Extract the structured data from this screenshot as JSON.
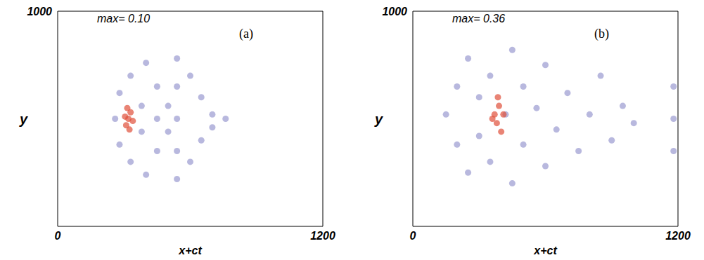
{
  "chart_data": [
    {
      "type": "scatter",
      "title": "max= 0.10",
      "panel": "(a)",
      "xlabel": "x+ct",
      "ylabel": "y",
      "xlim": [
        0,
        1200
      ],
      "ylim": [
        0,
        1000
      ],
      "xticks": [
        0,
        1200
      ],
      "yticks": [
        1000
      ],
      "series": [
        {
          "color": "#9a9ad0",
          "marker": "circle",
          "x": [
            260,
            280,
            280,
            330,
            330,
            400,
            400,
            450,
            450,
            450,
            540,
            540,
            540,
            540,
            540,
            600,
            600,
            650,
            650,
            700,
            700,
            760,
            500,
            500,
            380,
            380
          ],
          "values": [
            500,
            620,
            380,
            700,
            300,
            760,
            240,
            650,
            350,
            500,
            780,
            650,
            500,
            350,
            220,
            700,
            300,
            600,
            400,
            520,
            460,
            500,
            560,
            440,
            560,
            440
          ]
        },
        {
          "color": "#e0503a",
          "marker": "circle",
          "x": [
            310,
            320,
            330,
            315,
            325,
            340,
            305
          ],
          "values": [
            470,
            500,
            530,
            550,
            450,
            490,
            510
          ]
        }
      ]
    },
    {
      "type": "scatter",
      "title": "max= 0.36",
      "panel": "(b)",
      "xlabel": "x+ct",
      "ylabel": "y",
      "xlim": [
        0,
        1200
      ],
      "ylim": [
        0,
        1000
      ],
      "xticks": [
        0,
        1200
      ],
      "yticks": [
        1000
      ],
      "series": [
        {
          "color": "#9a9ad0",
          "marker": "circle",
          "x": [
            150,
            200,
            200,
            250,
            250,
            300,
            300,
            350,
            350,
            420,
            450,
            450,
            500,
            500,
            560,
            600,
            600,
            650,
            700,
            750,
            800,
            850,
            900,
            950,
            1000,
            1180,
            1180,
            1180
          ],
          "values": [
            520,
            650,
            380,
            780,
            250,
            600,
            420,
            700,
            300,
            520,
            820,
            200,
            650,
            380,
            550,
            750,
            280,
            450,
            620,
            350,
            520,
            700,
            400,
            560,
            480,
            500,
            650,
            350
          ]
        },
        {
          "color": "#e0503a",
          "marker": "circle",
          "x": [
            370,
            380,
            390,
            400,
            360,
            410,
            385
          ],
          "values": [
            520,
            480,
            560,
            440,
            500,
            520,
            600
          ]
        }
      ]
    }
  ]
}
